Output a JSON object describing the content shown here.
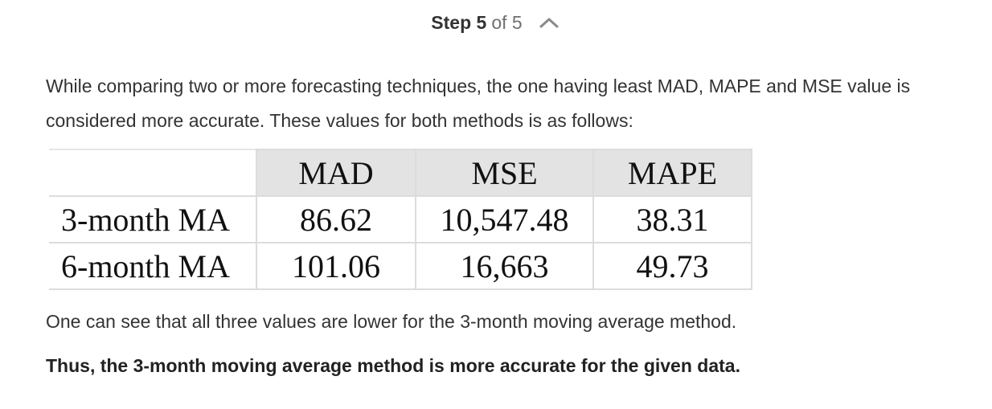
{
  "step": {
    "current_label": "Step 5",
    "total_label": "of 5",
    "toggle_icon": "chevron-up-icon"
  },
  "intro_text": "While comparing two or more forecasting techniques, the one having least MAD, MAPE and MSE value is considered more accurate. These values for both methods is as follows:",
  "table": {
    "corner": "",
    "headers": [
      "MAD",
      "MSE",
      "MAPE"
    ],
    "rows": [
      {
        "label": "3-month MA",
        "values": [
          "86.62",
          "10,547.48",
          "38.31"
        ]
      },
      {
        "label": "6-month MA",
        "values": [
          "101.06",
          "16,663",
          "49.73"
        ]
      }
    ]
  },
  "conclusion_text": "One can see that all three values are lower for the 3-month moving average method.",
  "final_text": "Thus, the 3-month moving average method is more accurate for the given data."
}
